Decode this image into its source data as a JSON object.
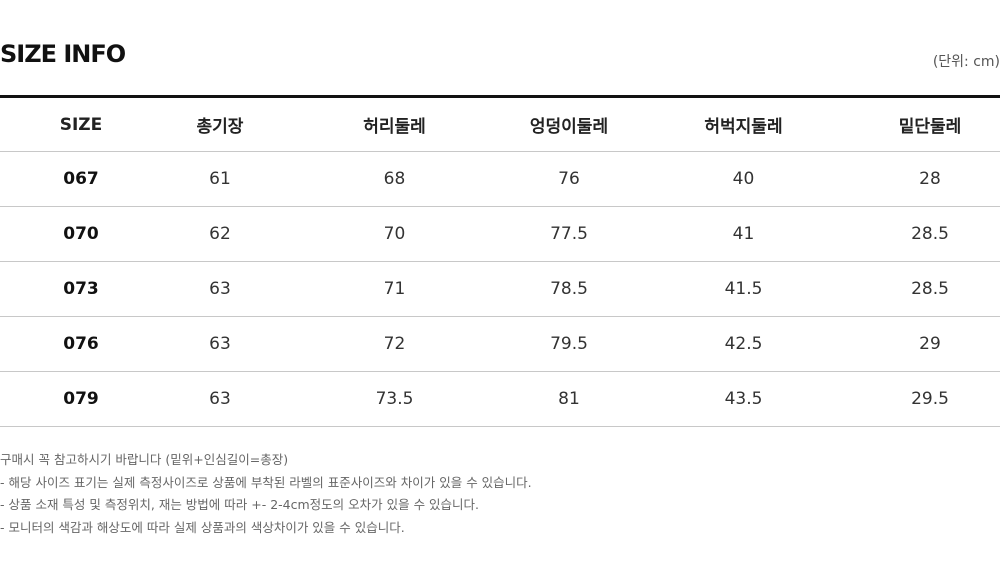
{
  "title": "SIZE INFO",
  "unit": "(단위: cm)",
  "table": {
    "headers": [
      "SIZE",
      "총기장",
      "허리둘레",
      "엉덩이둘레",
      "허벅지둘레",
      "밑단둘레"
    ],
    "rows": [
      [
        "067",
        "61",
        "68",
        "76",
        "40",
        "28"
      ],
      [
        "070",
        "62",
        "70",
        "77.5",
        "41",
        "28.5"
      ],
      [
        "073",
        "63",
        "71",
        "78.5",
        "41.5",
        "28.5"
      ],
      [
        "076",
        "63",
        "72",
        "79.5",
        "42.5",
        "29"
      ],
      [
        "079",
        "63",
        "73.5",
        "81",
        "43.5",
        "29.5"
      ]
    ]
  },
  "notes": [
    "구매시 꼭 참고하시기 바랍니다 (밑위+인심길이=총장)",
    "- 해당 사이즈 표기는 실제 측정사이즈로 상품에 부착된 라벨의 표준사이즈와 차이가 있을 수 있습니다.",
    "- 상품 소재 특성 및 측정위치, 재는 방법에 따라 +- 2-4cm정도의 오차가 있을 수 있습니다.",
    "- 모니터의 색감과 해상도에 따라 실제 상품과의 색상차이가 있을 수 있습니다."
  ]
}
